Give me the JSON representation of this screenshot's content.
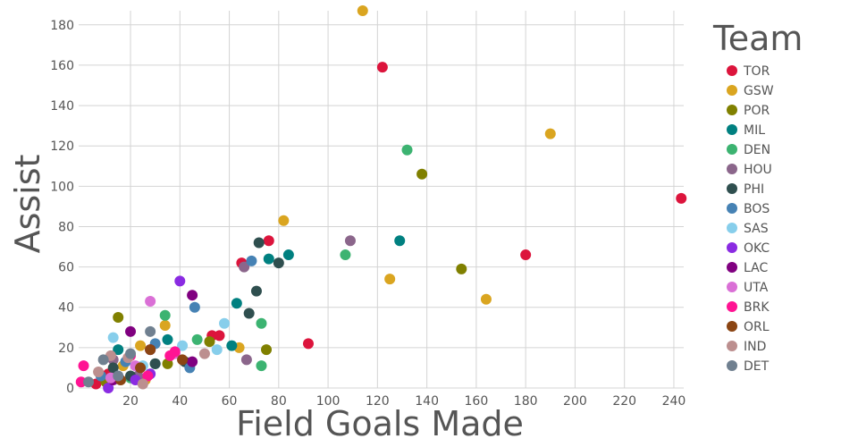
{
  "chart_data": {
    "type": "scatter",
    "xlabel": "Field Goals Made",
    "ylabel": "Assist",
    "xlim": [
      -1,
      244
    ],
    "ylim": [
      0,
      187
    ],
    "x_ticks": [
      20,
      40,
      60,
      80,
      100,
      120,
      140,
      160,
      180,
      200,
      220,
      240
    ],
    "y_ticks": [
      0,
      20,
      40,
      60,
      80,
      100,
      120,
      140,
      160,
      180
    ],
    "grid": true,
    "legend": {
      "title": "Team",
      "placement": "right"
    },
    "series": [
      {
        "name": "TOR",
        "color": "#dc143c",
        "points": [
          [
            243,
            94
          ],
          [
            180,
            66
          ],
          [
            122,
            159
          ],
          [
            92,
            22
          ],
          [
            76,
            73
          ],
          [
            65,
            62
          ],
          [
            56,
            26
          ],
          [
            53,
            26
          ],
          [
            11,
            7
          ],
          [
            6,
            2
          ]
        ]
      },
      {
        "name": "GSW",
        "color": "#daa520",
        "points": [
          [
            114,
            187
          ],
          [
            190,
            126
          ],
          [
            164,
            44
          ],
          [
            125,
            54
          ],
          [
            82,
            83
          ],
          [
            64,
            20
          ],
          [
            34,
            31
          ],
          [
            26,
            4
          ],
          [
            24,
            21
          ],
          [
            17,
            11
          ]
        ]
      },
      {
        "name": "POR",
        "color": "#808000",
        "points": [
          [
            154,
            59
          ],
          [
            138,
            106
          ],
          [
            75,
            19
          ],
          [
            52,
            23
          ],
          [
            35,
            12
          ],
          [
            15,
            35
          ],
          [
            10,
            3
          ]
        ]
      },
      {
        "name": "MIL",
        "color": "#008080",
        "points": [
          [
            129,
            73
          ],
          [
            84,
            66
          ],
          [
            76,
            64
          ],
          [
            63,
            42
          ],
          [
            61,
            21
          ],
          [
            35,
            24
          ],
          [
            30,
            12
          ],
          [
            15,
            19
          ]
        ]
      },
      {
        "name": "DEN",
        "color": "#3cb371",
        "points": [
          [
            132,
            118
          ],
          [
            107,
            66
          ],
          [
            73,
            32
          ],
          [
            73,
            11
          ],
          [
            47,
            24
          ],
          [
            34,
            36
          ],
          [
            20,
            5
          ]
        ]
      },
      {
        "name": "HOU",
        "color": "#8b668b",
        "points": [
          [
            109,
            73
          ],
          [
            67,
            14
          ],
          [
            66,
            60
          ],
          [
            23,
            6
          ],
          [
            13,
            14
          ]
        ]
      },
      {
        "name": "PHI",
        "color": "#2f4f4f",
        "points": [
          [
            72,
            72
          ],
          [
            80,
            62
          ],
          [
            71,
            48
          ],
          [
            68,
            37
          ],
          [
            42,
            13
          ],
          [
            30,
            12
          ],
          [
            20,
            6
          ],
          [
            13,
            10
          ]
        ]
      },
      {
        "name": "BOS",
        "color": "#4682b4",
        "points": [
          [
            69,
            63
          ],
          [
            46,
            40
          ],
          [
            44,
            10
          ],
          [
            30,
            22
          ],
          [
            18,
            13
          ],
          [
            8,
            6
          ]
        ]
      },
      {
        "name": "SAS",
        "color": "#87ceeb",
        "points": [
          [
            58,
            32
          ],
          [
            55,
            19
          ],
          [
            41,
            21
          ],
          [
            25,
            11
          ],
          [
            13,
            25
          ]
        ]
      },
      {
        "name": "OKC",
        "color": "#8a2be2",
        "points": [
          [
            40,
            53
          ],
          [
            28,
            7
          ],
          [
            22,
            4
          ],
          [
            11,
            0
          ]
        ]
      },
      {
        "name": "LAC",
        "color": "#800080",
        "points": [
          [
            45,
            46
          ],
          [
            45,
            13
          ],
          [
            20,
            28
          ],
          [
            28,
            19
          ],
          [
            13,
            4
          ]
        ]
      },
      {
        "name": "UTA",
        "color": "#da70d6",
        "points": [
          [
            28,
            43
          ],
          [
            38,
            17
          ],
          [
            22,
            11
          ],
          [
            12,
            5
          ]
        ]
      },
      {
        "name": "BRK",
        "color": "#ff1493",
        "points": [
          [
            1,
            11
          ],
          [
            0,
            3
          ],
          [
            36,
            16
          ],
          [
            38,
            18
          ],
          [
            27,
            6
          ],
          [
            20,
            16
          ]
        ]
      },
      {
        "name": "ORL",
        "color": "#8b4513",
        "points": [
          [
            28,
            19
          ],
          [
            41,
            14
          ],
          [
            24,
            10
          ],
          [
            16,
            4
          ]
        ]
      },
      {
        "name": "IND",
        "color": "#bc8f8f",
        "points": [
          [
            12,
            16
          ],
          [
            19,
            15
          ],
          [
            7,
            8
          ],
          [
            50,
            17
          ],
          [
            25,
            2
          ]
        ]
      },
      {
        "name": "DET",
        "color": "#708090",
        "points": [
          [
            28,
            28
          ],
          [
            20,
            17
          ],
          [
            9,
            14
          ],
          [
            3,
            3
          ],
          [
            15,
            6
          ]
        ]
      }
    ]
  }
}
